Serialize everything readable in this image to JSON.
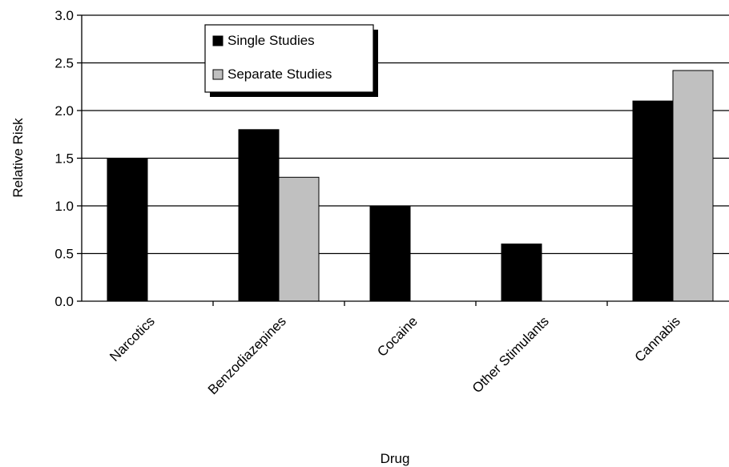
{
  "chart_data": {
    "type": "bar",
    "xlabel": "Drug",
    "ylabel": "Relative Risk",
    "ylim": [
      0,
      3.0
    ],
    "yticks": [
      "0.0",
      "0.5",
      "1.0",
      "1.5",
      "2.0",
      "2.5",
      "3.0"
    ],
    "categories": [
      "Narcotics",
      "Benzodiazepines",
      "Cocaine",
      "Other Stimulants",
      "Cannabis"
    ],
    "series": [
      {
        "name": "Single Studies",
        "color": "#000000",
        "values": [
          1.5,
          1.8,
          1.0,
          0.6,
          2.1
        ]
      },
      {
        "name": "Separate Studies",
        "color": "#c0c0c0",
        "values": [
          null,
          1.3,
          null,
          null,
          2.42
        ]
      }
    ],
    "grid": true,
    "legend_position": "top-left-inside"
  }
}
